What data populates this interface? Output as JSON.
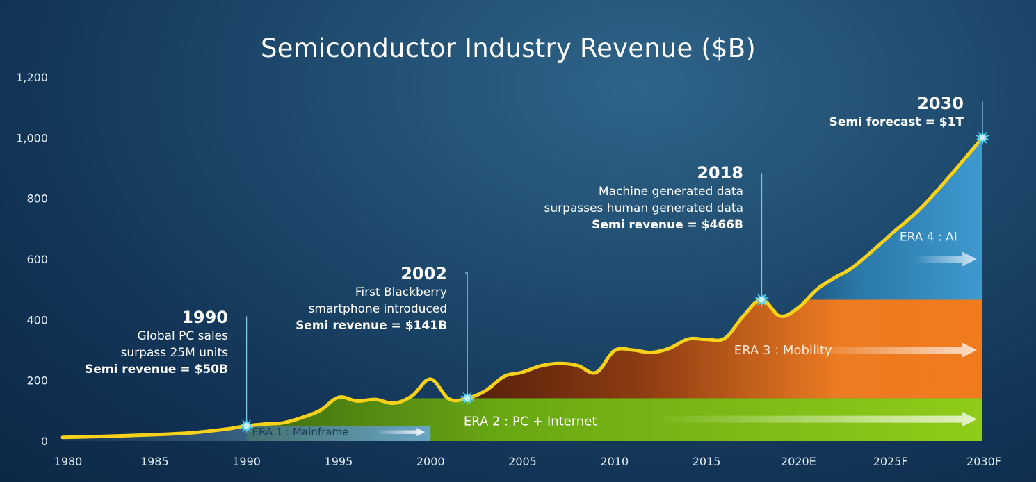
{
  "colors": {
    "line": "#f8d21a",
    "era1": "#5a9bc7",
    "era2": "#7fc21a",
    "era3": "#ef7a1d",
    "era4": "#3d97cc",
    "era3_dark": "#6b2a0c",
    "marker": "#56d5f5",
    "leader": "#7cc6e6"
  },
  "chart_data": {
    "type": "area",
    "title": "Semiconductor Industry Revenue ($B)",
    "xlabel": "",
    "ylabel": "",
    "ylim": [
      0,
      1200
    ],
    "xlim": [
      1980,
      2030
    ],
    "y_ticks": [
      0,
      200,
      400,
      600,
      800,
      1000,
      1200
    ],
    "y_tick_labels": [
      "0",
      "200",
      "400",
      "600",
      "800",
      "1,000",
      "1,200"
    ],
    "x_ticks": [
      1980,
      1985,
      1990,
      1995,
      2000,
      2005,
      2010,
      2015,
      2020,
      2025,
      2030
    ],
    "x_tick_labels": [
      "1980",
      "1985",
      "1990",
      "1995",
      "2000",
      "2005",
      "2010",
      "2015",
      "2020E",
      "2025F",
      "2030F"
    ],
    "grid": false,
    "series": [
      {
        "x": [
          1980,
          1982,
          1985,
          1987,
          1988,
          1989,
          1990,
          1991,
          1992,
          1993,
          1994,
          1995,
          1996,
          1997,
          1998,
          1999,
          2000,
          2001,
          2002,
          2003,
          2004,
          2005,
          2006,
          2007,
          2008,
          2009,
          2010,
          2011,
          2012,
          2013,
          2014,
          2015,
          2016,
          2017,
          2018,
          2019,
          2020,
          2021,
          2022,
          2023,
          2025,
          2027,
          2030
        ],
        "values": [
          12,
          15,
          21,
          27,
          33,
          40,
          50,
          56,
          60,
          77,
          101,
          144,
          132,
          137,
          125,
          149,
          204,
          139,
          141,
          166,
          213,
          227,
          248,
          256,
          249,
          226,
          298,
          300,
          292,
          306,
          336,
          335,
          339,
          412,
          466,
          412,
          440,
          500,
          540,
          575,
          680,
          790,
          1000
        ]
      }
    ],
    "eras": [
      {
        "label": "ERA 1 : Mainframe",
        "x_start": 1980,
        "x_end": 2000,
        "y_top": 50
      },
      {
        "label": "ERA 2 : PC + Internet",
        "x_start": 1990,
        "x_end": 2030,
        "y_top": 141
      },
      {
        "label": "ERA 3 : Mobility",
        "x_start": 2002,
        "x_end": 2030,
        "y_top": 466
      },
      {
        "label": "ERA 4 : AI",
        "x_start": 2018,
        "x_end": 2030,
        "y_top": 1000
      }
    ],
    "annotations": [
      {
        "year": "1990",
        "x": 1990,
        "y": 50,
        "lines": [
          "Global PC sales",
          "surpass 25M units"
        ],
        "revenue": "Semi revenue = $50B"
      },
      {
        "year": "2002",
        "x": 2002,
        "y": 141,
        "lines": [
          "First Blackberry",
          "smartphone introduced"
        ],
        "revenue": "Semi revenue = $141B"
      },
      {
        "year": "2018",
        "x": 2018,
        "y": 466,
        "lines": [
          "Machine generated data",
          "surpasses human generated data"
        ],
        "revenue": "Semi revenue = $466B"
      },
      {
        "year": "2030",
        "x": 2030,
        "y": 1000,
        "lines": [],
        "revenue": "Semi forecast = $1T"
      }
    ]
  }
}
